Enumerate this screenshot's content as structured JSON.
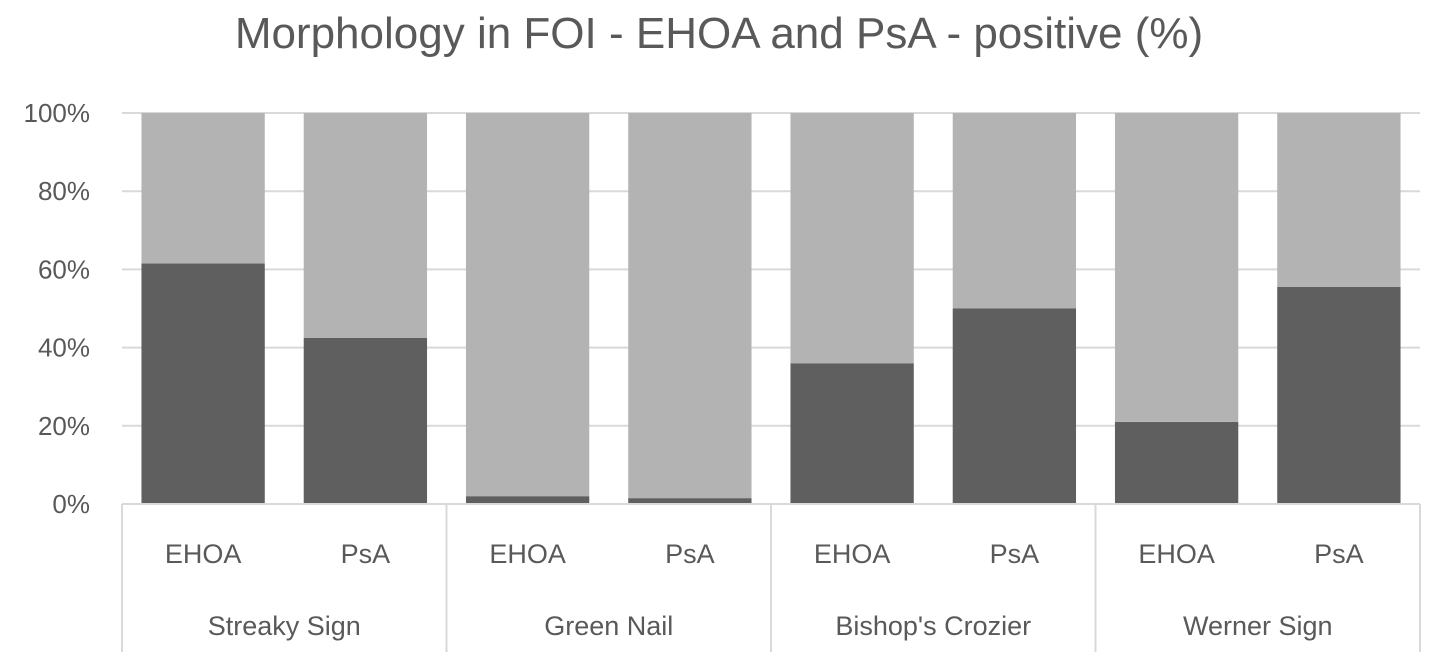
{
  "chart_data": {
    "type": "bar",
    "stacked": true,
    "percent_stacked": true,
    "title": "Morphology in FOI - EHOA and PsA - positive (%)",
    "xlabel": "",
    "ylabel": "",
    "ylim": [
      0,
      100
    ],
    "y_ticks": [
      "0%",
      "20%",
      "40%",
      "60%",
      "80%",
      "100%"
    ],
    "grid": true,
    "legend": "none",
    "groups": [
      {
        "label": "Streaky Sign",
        "categories": [
          "EHOA",
          "PsA"
        ]
      },
      {
        "label": "Green Nail",
        "categories": [
          "EHOA",
          "PsA"
        ]
      },
      {
        "label": "Bishop's Crozier",
        "categories": [
          "EHOA",
          "PsA"
        ]
      },
      {
        "label": "Werner Sign",
        "categories": [
          "EHOA",
          "PsA"
        ]
      }
    ],
    "categories": [
      "EHOA",
      "PsA",
      "EHOA",
      "PsA",
      "EHOA",
      "PsA",
      "EHOA",
      "PsA"
    ],
    "series": [
      {
        "values": [
          61.5,
          42.5,
          2,
          1.5,
          36,
          50,
          21,
          55.5
        ],
        "color": "#5f5f5f"
      },
      {
        "values": [
          38.5,
          57.5,
          98,
          98.5,
          64,
          50,
          79,
          44.5
        ],
        "color": "#b3b3b3"
      }
    ]
  }
}
